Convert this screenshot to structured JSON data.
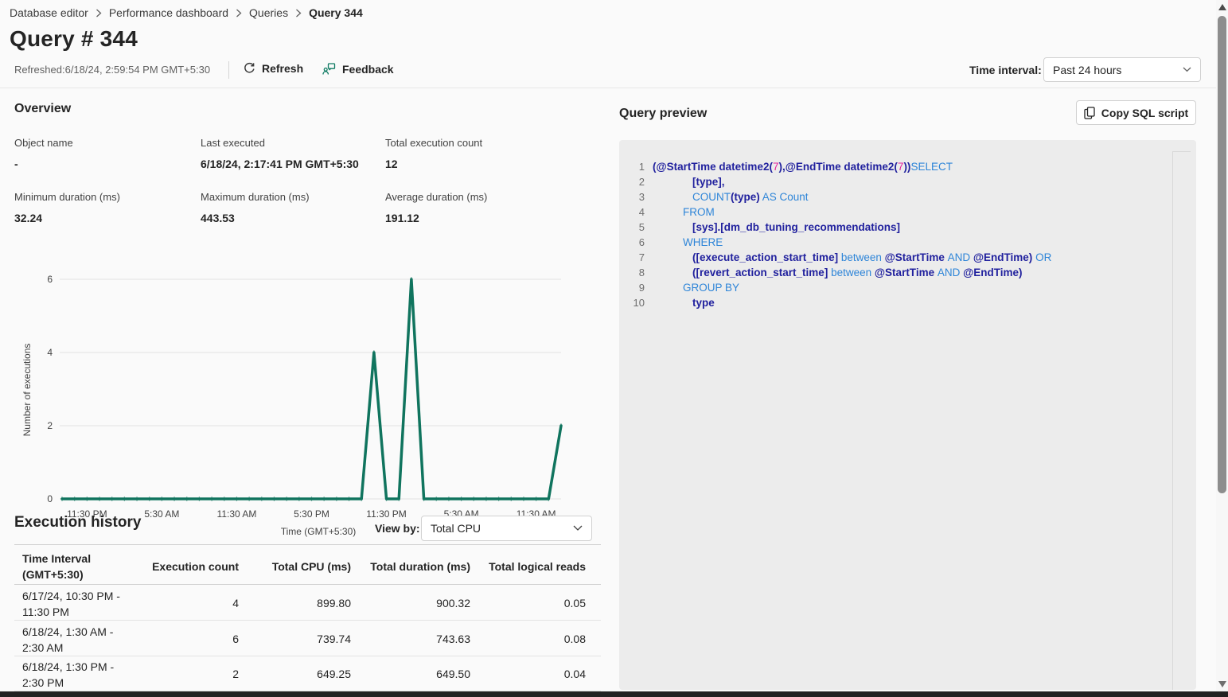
{
  "breadcrumb": {
    "items": [
      "Database editor",
      "Performance dashboard",
      "Queries",
      "Query 344"
    ]
  },
  "header": {
    "title": "Query # 344",
    "refreshed": "Refreshed:6/18/24, 2:59:54 PM GMT+5:30",
    "refresh_label": "Refresh",
    "feedback_label": "Feedback",
    "time_interval_label": "Time interval:",
    "time_interval_value": "Past 24 hours"
  },
  "overview": {
    "title": "Overview",
    "fields": [
      {
        "label": "Object name",
        "value": "-"
      },
      {
        "label": "Last executed",
        "value": "6/18/24, 2:17:41 PM GMT+5:30"
      },
      {
        "label": "Total execution count",
        "value": "12"
      },
      {
        "label": "Minimum duration (ms)",
        "value": "32.24"
      },
      {
        "label": "Maximum duration (ms)",
        "value": "443.53"
      },
      {
        "label": "Average duration (ms)",
        "value": "191.12"
      }
    ]
  },
  "chart_data": {
    "type": "line",
    "title": "",
    "ylabel": "Number of executions",
    "xlabel": "Time (GMT+5:30)",
    "ylim": [
      0,
      6
    ],
    "yticks": [
      0,
      2,
      4,
      6
    ],
    "grid": "horizontal",
    "x_hours_span": 40,
    "x_tick_labels": [
      "11:30 PM",
      "5:30 AM",
      "11:30 AM",
      "5:30 PM",
      "11:30 PM",
      "5:30 AM",
      "11:30 AM"
    ],
    "x_tick_positions_hours": [
      2,
      8,
      14,
      20,
      26,
      32,
      38
    ],
    "series": [
      {
        "name": "Number of executions",
        "color": "#10745e",
        "values": [
          0,
          0,
          0,
          0,
          0,
          0,
          0,
          0,
          0,
          0,
          0,
          0,
          0,
          0,
          0,
          0,
          0,
          0,
          0,
          0,
          0,
          0,
          0,
          0,
          0,
          4,
          0,
          0,
          6,
          0,
          0,
          0,
          0,
          0,
          0,
          0,
          0,
          0,
          0,
          0,
          2
        ]
      }
    ],
    "notable_points": [
      {
        "hour_offset": 25,
        "time": "6/17/24 10:30 PM",
        "value": 4
      },
      {
        "hour_offset": 28,
        "time": "6/18/24 1:30 AM",
        "value": 6
      },
      {
        "hour_offset": 40,
        "time": "6/18/24 1:30 PM",
        "value": 2
      }
    ]
  },
  "execution_history": {
    "title": "Execution history",
    "view_by_label": "View by:",
    "view_by_value": "Total CPU",
    "col1_lines": [
      "Time Interval",
      "(GMT+5:30)"
    ],
    "columns": [
      "Time Interval (GMT+5:30)",
      "Execution count",
      "Total CPU (ms)",
      "Total duration (ms)",
      "Total logical reads"
    ],
    "rows": [
      {
        "interval": [
          "6/17/24, 10:30 PM -",
          "11:30 PM"
        ],
        "count": "4",
        "cpu": "899.80",
        "duration": "900.32",
        "reads": "0.05"
      },
      {
        "interval": [
          "6/18/24, 1:30 AM -",
          "2:30 AM"
        ],
        "count": "6",
        "cpu": "739.74",
        "duration": "743.63",
        "reads": "0.08"
      },
      {
        "interval": [
          "6/18/24, 1:30 PM -",
          "2:30 PM"
        ],
        "count": "2",
        "cpu": "649.25",
        "duration": "649.50",
        "reads": "0.04"
      }
    ]
  },
  "query_preview": {
    "title": "Query preview",
    "copy_button": "Copy SQL script",
    "lines": [
      {
        "num": "1",
        "indent": 0,
        "tokens": [
          {
            "t": "(@StartTime datetime2(",
            "c": "navy"
          },
          {
            "t": "7",
            "c": "pink"
          },
          {
            "t": "),@EndTime datetime2(",
            "c": "navy"
          },
          {
            "t": "7",
            "c": "pink"
          },
          {
            "t": "))",
            "c": "navy"
          },
          {
            "t": "SELECT",
            "c": "blue"
          }
        ]
      },
      {
        "num": "2",
        "indent": 2,
        "tokens": [
          {
            "t": "[type],",
            "c": "navy"
          }
        ]
      },
      {
        "num": "3",
        "indent": 2,
        "tokens": [
          {
            "t": "COUNT",
            "c": "blue"
          },
          {
            "t": "(type)",
            "c": "navy"
          },
          {
            "t": " AS Count",
            "c": "blue"
          }
        ]
      },
      {
        "num": "4",
        "indent": 1,
        "tokens": [
          {
            "t": "FROM",
            "c": "blue"
          }
        ]
      },
      {
        "num": "5",
        "indent": 2,
        "tokens": [
          {
            "t": "[sys].[dm_db_tuning_recommendations]",
            "c": "navy"
          }
        ]
      },
      {
        "num": "6",
        "indent": 1,
        "tokens": [
          {
            "t": "WHERE",
            "c": "blue"
          }
        ]
      },
      {
        "num": "7",
        "indent": 2,
        "tokens": [
          {
            "t": "([execute_action_start_time] ",
            "c": "navy"
          },
          {
            "t": "between",
            "c": "blue"
          },
          {
            "t": " ",
            "c": "navy"
          },
          {
            "t": "@StartTime",
            "c": "navy"
          },
          {
            "t": " ",
            "c": "navy"
          },
          {
            "t": "AND",
            "c": "blue"
          },
          {
            "t": " ",
            "c": "navy"
          },
          {
            "t": "@EndTime)",
            "c": "navy"
          },
          {
            "t": " ",
            "c": "navy"
          },
          {
            "t": "OR",
            "c": "blue"
          }
        ]
      },
      {
        "num": "8",
        "indent": 2,
        "tokens": [
          {
            "t": "([revert_action_start_time] ",
            "c": "navy"
          },
          {
            "t": "between",
            "c": "blue"
          },
          {
            "t": " ",
            "c": "navy"
          },
          {
            "t": "@StartTime",
            "c": "navy"
          },
          {
            "t": " ",
            "c": "navy"
          },
          {
            "t": "AND",
            "c": "blue"
          },
          {
            "t": " ",
            "c": "navy"
          },
          {
            "t": "@EndTime)",
            "c": "navy"
          }
        ]
      },
      {
        "num": "9",
        "indent": 1,
        "tokens": [
          {
            "t": "GROUP BY",
            "c": "blue"
          }
        ]
      },
      {
        "num": "10",
        "indent": 2,
        "tokens": [
          {
            "t": "type",
            "c": "navy"
          }
        ]
      }
    ]
  },
  "colors": {
    "accent_line": "#10745e",
    "icon_teal": "#0f7b63",
    "sql_identifier": "#21219e",
    "sql_keyword": "#2e85d8",
    "sql_number": "#e5239d",
    "code_bg": "#ececec",
    "page_bg": "#fafafa"
  }
}
